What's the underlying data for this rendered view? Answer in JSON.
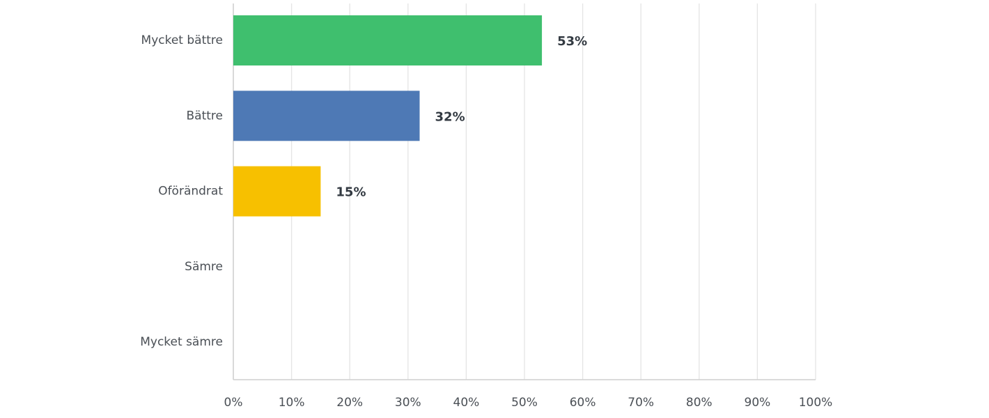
{
  "chart_data": {
    "type": "hbar",
    "categories": [
      "Mycket bättre",
      "Bättre",
      "Oförändrat",
      "Sämre",
      "Mycket sämre"
    ],
    "values": [
      53,
      32,
      15,
      0,
      0
    ],
    "value_labels": [
      "53%",
      "32%",
      "15%",
      null,
      null
    ],
    "colors": [
      "#3fbf6e",
      "#4e79b5",
      "#f7c000",
      "#3fbf6e",
      "#3fbf6e"
    ],
    "xlim": [
      0,
      100
    ],
    "xticks": [
      {
        "value": 0,
        "label": "0%"
      },
      {
        "value": 10,
        "label": "10%"
      },
      {
        "value": 20,
        "label": "20%"
      },
      {
        "value": 30,
        "label": "30%"
      },
      {
        "value": 40,
        "label": "40%"
      },
      {
        "value": 50,
        "label": "50%"
      },
      {
        "value": 60,
        "label": "60%"
      },
      {
        "value": 70,
        "label": "70%"
      },
      {
        "value": 80,
        "label": "80%"
      },
      {
        "value": 90,
        "label": "90%"
      },
      {
        "value": 100,
        "label": "100%"
      }
    ],
    "grid": true
  }
}
